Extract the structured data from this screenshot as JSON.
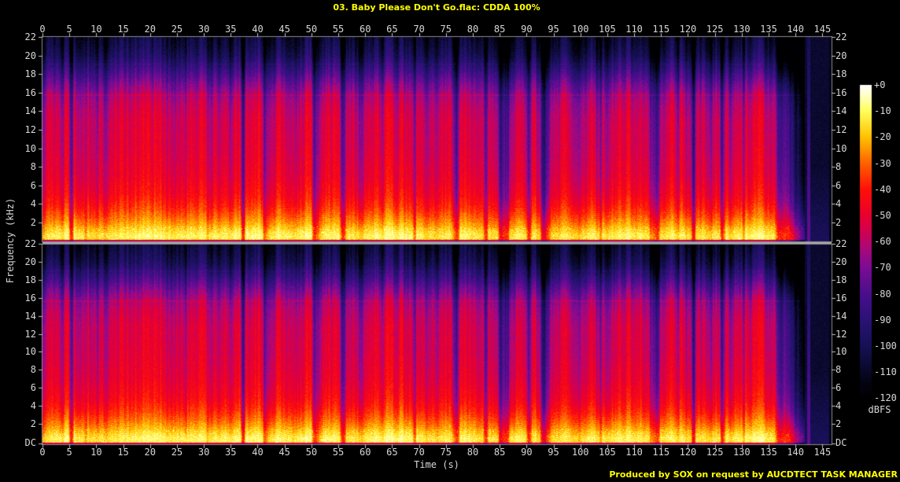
{
  "header": {
    "title": "03. Baby Please Don't Go.flac: CDDA 100%"
  },
  "footer": {
    "credit": "Produced by SOX on request by AUCDTECT TASK MANAGER"
  },
  "colors": {
    "background": "#000000",
    "accent_text": "#ffff00",
    "tick_text": "#d8d8d8",
    "axis_line": "#8a8a8a",
    "channel_separator": "#a8a8a8"
  },
  "chart_data": {
    "type": "heatmap",
    "subtype": "stereo audio spectrogram (SoX)",
    "title": "03. Baby Please Don't Go.flac: CDDA 100%",
    "xlabel": "Time (s)",
    "ylabel": "Frequency (kHz)",
    "channels": [
      "left",
      "right"
    ],
    "x_range_s": [
      0,
      146.7
    ],
    "x_ticks": [
      0,
      5,
      10,
      15,
      20,
      25,
      30,
      35,
      40,
      45,
      50,
      55,
      60,
      65,
      70,
      75,
      80,
      85,
      90,
      95,
      100,
      105,
      110,
      115,
      120,
      125,
      130,
      135,
      140,
      145
    ],
    "y_range_khz_per_channel": [
      0,
      22
    ],
    "y_ticks_khz": [
      "22",
      "20",
      "18",
      "16",
      "14",
      "12",
      "10",
      "8",
      "6",
      "4",
      "2"
    ],
    "y_bottom_label": "DC",
    "colorbar": {
      "label": "dBFS",
      "ticks": [
        "+0",
        "-10",
        "-20",
        "-30",
        "-40",
        "-50",
        "-60",
        "-70",
        "-80",
        "-90",
        "-100",
        "-110",
        "-120"
      ],
      "range_db": [
        0,
        -120
      ]
    },
    "track_end_s": 137.3,
    "fade_out_end_s": 141.6,
    "silence_tail_s": [
      141.6,
      146.7
    ],
    "reverb_streak_s": [
      142.15,
      142.7
    ],
    "column_dynamics_db": 30,
    "spectral_lines_khz": [
      15.78,
      19.12
    ],
    "freq_profile_dbfs": [
      [
        0,
        -58
      ],
      [
        0.1,
        -20
      ],
      [
        0.25,
        -12
      ],
      [
        0.6,
        -11
      ],
      [
        1.1,
        -15
      ],
      [
        1.8,
        -21
      ],
      [
        2.6,
        -27
      ],
      [
        3.5,
        -32
      ],
      [
        5,
        -38
      ],
      [
        7,
        -43
      ],
      [
        10,
        -46
      ],
      [
        13,
        -47
      ],
      [
        15,
        -51
      ],
      [
        16,
        -56
      ],
      [
        17,
        -63
      ],
      [
        18,
        -72
      ],
      [
        19,
        -81
      ],
      [
        20,
        -89
      ],
      [
        21,
        -94
      ],
      [
        22,
        -98
      ]
    ],
    "palette_stops": [
      [
        0.0,
        [
          0,
          0,
          2
        ]
      ],
      [
        0.05,
        [
          3,
          3,
          18
        ]
      ],
      [
        0.083,
        [
          8,
          8,
          38
        ]
      ],
      [
        0.167,
        [
          22,
          16,
          84
        ]
      ],
      [
        0.25,
        [
          42,
          18,
          118
        ]
      ],
      [
        0.333,
        [
          74,
          14,
          140
        ]
      ],
      [
        0.417,
        [
          122,
          12,
          148
        ]
      ],
      [
        0.48,
        [
          172,
          8,
          122
        ]
      ],
      [
        0.542,
        [
          215,
          0,
          74
        ]
      ],
      [
        0.583,
        [
          233,
          0,
          46
        ]
      ],
      [
        0.667,
        [
          255,
          16,
          8
        ]
      ],
      [
        0.75,
        [
          255,
          96,
          0
        ]
      ],
      [
        0.833,
        [
          255,
          192,
          0
        ]
      ],
      [
        0.917,
        [
          255,
          255,
          88
        ]
      ],
      [
        0.965,
        [
          255,
          255,
          192
        ]
      ],
      [
        1.0,
        [
          255,
          255,
          255
        ]
      ]
    ]
  }
}
